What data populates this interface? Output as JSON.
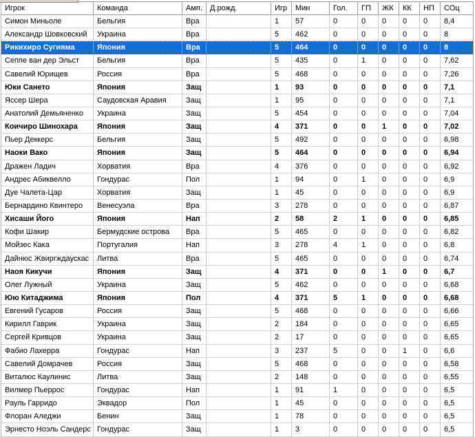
{
  "colors": {
    "selection_bg": "#0a73d2",
    "selection_text": "#ffffff",
    "focus_dash_orange": "#e88c00",
    "focus_dash_dark": "#1a1a1a",
    "grid_line": "#c9c9c9",
    "header_line": "#9a9a9a"
  },
  "table": {
    "columns": [
      {
        "key": "player",
        "label": "Игрок"
      },
      {
        "key": "team",
        "label": "Команда"
      },
      {
        "key": "position",
        "label": "Амп."
      },
      {
        "key": "dob",
        "label": "Д.рожд."
      },
      {
        "key": "games",
        "label": "Игр"
      },
      {
        "key": "minutes",
        "label": "Мин"
      },
      {
        "key": "goals",
        "label": "Гол."
      },
      {
        "key": "gp",
        "label": "ГП"
      },
      {
        "key": "yellow_cards",
        "label": "ЖК"
      },
      {
        "key": "red_cards",
        "label": "КК"
      },
      {
        "key": "np",
        "label": "НП"
      },
      {
        "key": "rating",
        "label": "СОц"
      }
    ],
    "rows": [
      {
        "player": "Симон Миньоле",
        "team": "Бельгия",
        "position": "Вра",
        "dob": "",
        "games": "1",
        "minutes": "57",
        "goals": "0",
        "gp": "0",
        "yellow_cards": "0",
        "red_cards": "0",
        "np": "0",
        "rating": "8,4",
        "bold": false,
        "selected": false
      },
      {
        "player": "Александр Шовковский",
        "team": "Украина",
        "position": "Вра",
        "dob": "",
        "games": "5",
        "minutes": "462",
        "goals": "0",
        "gp": "0",
        "yellow_cards": "0",
        "red_cards": "0",
        "np": "0",
        "rating": "8",
        "bold": false,
        "selected": false
      },
      {
        "player": "Рикихиро Сугияма",
        "team": "Япония",
        "position": "Вра",
        "dob": "",
        "games": "5",
        "minutes": "464",
        "goals": "0",
        "gp": "0",
        "yellow_cards": "0",
        "red_cards": "0",
        "np": "0",
        "rating": "8",
        "bold": true,
        "selected": true
      },
      {
        "player": "Сеппе ван дер Эльст",
        "team": "Бельгия",
        "position": "Вра",
        "dob": "",
        "games": "5",
        "minutes": "435",
        "goals": "0",
        "gp": "1",
        "yellow_cards": "0",
        "red_cards": "0",
        "np": "0",
        "rating": "7,62",
        "bold": false,
        "selected": false
      },
      {
        "player": "Савелий Юрищев",
        "team": "Россия",
        "position": "Вра",
        "dob": "",
        "games": "5",
        "minutes": "468",
        "goals": "0",
        "gp": "0",
        "yellow_cards": "0",
        "red_cards": "0",
        "np": "0",
        "rating": "7,26",
        "bold": false,
        "selected": false
      },
      {
        "player": "Юки Сането",
        "team": "Япония",
        "position": "Защ",
        "dob": "",
        "games": "1",
        "minutes": "93",
        "goals": "0",
        "gp": "0",
        "yellow_cards": "0",
        "red_cards": "0",
        "np": "0",
        "rating": "7,1",
        "bold": true,
        "selected": false
      },
      {
        "player": "Яссер Шера",
        "team": "Саудовская Аравия",
        "position": "Защ",
        "dob": "",
        "games": "1",
        "minutes": "95",
        "goals": "0",
        "gp": "0",
        "yellow_cards": "0",
        "red_cards": "0",
        "np": "0",
        "rating": "7,1",
        "bold": false,
        "selected": false
      },
      {
        "player": "Анатолий Демьяненко",
        "team": "Украина",
        "position": "Защ",
        "dob": "",
        "games": "5",
        "minutes": "454",
        "goals": "0",
        "gp": "0",
        "yellow_cards": "0",
        "red_cards": "0",
        "np": "0",
        "rating": "7,04",
        "bold": false,
        "selected": false
      },
      {
        "player": "Коичиро Шинохара",
        "team": "Япония",
        "position": "Защ",
        "dob": "",
        "games": "4",
        "minutes": "371",
        "goals": "0",
        "gp": "0",
        "yellow_cards": "1",
        "red_cards": "0",
        "np": "0",
        "rating": "7,02",
        "bold": true,
        "selected": false
      },
      {
        "player": "Пьер Деккерс",
        "team": "Бельгия",
        "position": "Защ",
        "dob": "",
        "games": "5",
        "minutes": "492",
        "goals": "0",
        "gp": "0",
        "yellow_cards": "0",
        "red_cards": "0",
        "np": "0",
        "rating": "6,98",
        "bold": false,
        "selected": false
      },
      {
        "player": "Наоки Вако",
        "team": "Япония",
        "position": "Защ",
        "dob": "",
        "games": "5",
        "minutes": "464",
        "goals": "0",
        "gp": "0",
        "yellow_cards": "0",
        "red_cards": "0",
        "np": "0",
        "rating": "6,94",
        "bold": true,
        "selected": false
      },
      {
        "player": "Дражен Ладич",
        "team": "Хорватия",
        "position": "Вра",
        "dob": "",
        "games": "4",
        "minutes": "376",
        "goals": "0",
        "gp": "0",
        "yellow_cards": "0",
        "red_cards": "0",
        "np": "0",
        "rating": "6,92",
        "bold": false,
        "selected": false
      },
      {
        "player": "Андрес Абиквелло",
        "team": "Гондурас",
        "position": "Пол",
        "dob": "",
        "games": "1",
        "minutes": "94",
        "goals": "0",
        "gp": "1",
        "yellow_cards": "0",
        "red_cards": "0",
        "np": "0",
        "rating": "6,9",
        "bold": false,
        "selected": false
      },
      {
        "player": "Дуе Чалета-Цар",
        "team": "Хорватия",
        "position": "Защ",
        "dob": "",
        "games": "1",
        "minutes": "45",
        "goals": "0",
        "gp": "0",
        "yellow_cards": "0",
        "red_cards": "0",
        "np": "0",
        "rating": "6,9",
        "bold": false,
        "selected": false
      },
      {
        "player": "Бернардино Квинтеро",
        "team": "Венесуэла",
        "position": "Вра",
        "dob": "",
        "games": "3",
        "minutes": "278",
        "goals": "0",
        "gp": "0",
        "yellow_cards": "0",
        "red_cards": "0",
        "np": "0",
        "rating": "6,87",
        "bold": false,
        "selected": false
      },
      {
        "player": "Хисаши Його",
        "team": "Япония",
        "position": "Нап",
        "dob": "",
        "games": "2",
        "minutes": "58",
        "goals": "2",
        "gp": "1",
        "yellow_cards": "0",
        "red_cards": "0",
        "np": "0",
        "rating": "6,85",
        "bold": true,
        "selected": false
      },
      {
        "player": "Кофи Шакир",
        "team": "Бермудские острова",
        "position": "Вра",
        "dob": "",
        "games": "5",
        "minutes": "465",
        "goals": "0",
        "gp": "0",
        "yellow_cards": "0",
        "red_cards": "0",
        "np": "0",
        "rating": "6,82",
        "bold": false,
        "selected": false
      },
      {
        "player": "Мойзес Кака",
        "team": "Португалия",
        "position": "Нап",
        "dob": "",
        "games": "3",
        "minutes": "278",
        "goals": "4",
        "gp": "1",
        "yellow_cards": "0",
        "red_cards": "0",
        "np": "0",
        "rating": "6,8",
        "bold": false,
        "selected": false
      },
      {
        "player": "Дайнюс Жвиргждаускас",
        "team": "Литва",
        "position": "Вра",
        "dob": "",
        "games": "5",
        "minutes": "465",
        "goals": "0",
        "gp": "0",
        "yellow_cards": "0",
        "red_cards": "0",
        "np": "0",
        "rating": "6,74",
        "bold": false,
        "selected": false
      },
      {
        "player": "Наоя Кикучи",
        "team": "Япония",
        "position": "Защ",
        "dob": "",
        "games": "4",
        "minutes": "371",
        "goals": "0",
        "gp": "0",
        "yellow_cards": "1",
        "red_cards": "0",
        "np": "0",
        "rating": "6,7",
        "bold": true,
        "selected": false
      },
      {
        "player": "Олег Лужный",
        "team": "Украина",
        "position": "Защ",
        "dob": "",
        "games": "5",
        "minutes": "462",
        "goals": "0",
        "gp": "0",
        "yellow_cards": "0",
        "red_cards": "0",
        "np": "0",
        "rating": "6,68",
        "bold": false,
        "selected": false
      },
      {
        "player": "Юю Китаджима",
        "team": "Япония",
        "position": "Пол",
        "dob": "",
        "games": "4",
        "minutes": "371",
        "goals": "5",
        "gp": "1",
        "yellow_cards": "0",
        "red_cards": "0",
        "np": "0",
        "rating": "6,68",
        "bold": true,
        "selected": false
      },
      {
        "player": "Евгений Гусаров",
        "team": "Россия",
        "position": "Защ",
        "dob": "",
        "games": "5",
        "minutes": "468",
        "goals": "0",
        "gp": "0",
        "yellow_cards": "0",
        "red_cards": "0",
        "np": "0",
        "rating": "6,66",
        "bold": false,
        "selected": false
      },
      {
        "player": "Кирилл Гаврик",
        "team": "Украина",
        "position": "Защ",
        "dob": "",
        "games": "2",
        "minutes": "184",
        "goals": "0",
        "gp": "0",
        "yellow_cards": "0",
        "red_cards": "0",
        "np": "0",
        "rating": "6,65",
        "bold": false,
        "selected": false
      },
      {
        "player": "Сергей Кривцов",
        "team": "Украина",
        "position": "Защ",
        "dob": "",
        "games": "2",
        "minutes": "17",
        "goals": "0",
        "gp": "0",
        "yellow_cards": "0",
        "red_cards": "0",
        "np": "0",
        "rating": "6,65",
        "bold": false,
        "selected": false
      },
      {
        "player": "Фабио Лахерра",
        "team": "Гондурас",
        "position": "Нап",
        "dob": "",
        "games": "3",
        "minutes": "237",
        "goals": "5",
        "gp": "0",
        "yellow_cards": "0",
        "red_cards": "1",
        "np": "0",
        "rating": "6,6",
        "bold": false,
        "selected": false
      },
      {
        "player": "Савелий Домрачев",
        "team": "Россия",
        "position": "Защ",
        "dob": "",
        "games": "5",
        "minutes": "468",
        "goals": "0",
        "gp": "0",
        "yellow_cards": "0",
        "red_cards": "0",
        "np": "0",
        "rating": "6,58",
        "bold": false,
        "selected": false
      },
      {
        "player": "Виталюс Каулинис",
        "team": "Литва",
        "position": "Защ",
        "dob": "",
        "games": "2",
        "minutes": "148",
        "goals": "0",
        "gp": "0",
        "yellow_cards": "0",
        "red_cards": "0",
        "np": "0",
        "rating": "6,55",
        "bold": false,
        "selected": false
      },
      {
        "player": "Вилмер Пьеррос",
        "team": "Гондурас",
        "position": "Нап",
        "dob": "",
        "games": "1",
        "minutes": "91",
        "goals": "1",
        "gp": "0",
        "yellow_cards": "0",
        "red_cards": "0",
        "np": "0",
        "rating": "6,5",
        "bold": false,
        "selected": false
      },
      {
        "player": "Рауль Гарридо",
        "team": "Эквадор",
        "position": "Пол",
        "dob": "",
        "games": "1",
        "minutes": "45",
        "goals": "0",
        "gp": "0",
        "yellow_cards": "0",
        "red_cards": "0",
        "np": "0",
        "rating": "6,5",
        "bold": false,
        "selected": false
      },
      {
        "player": "Флоран Аледжи",
        "team": "Бенин",
        "position": "Защ",
        "dob": "",
        "games": "1",
        "minutes": "78",
        "goals": "0",
        "gp": "0",
        "yellow_cards": "0",
        "red_cards": "0",
        "np": "0",
        "rating": "6,5",
        "bold": false,
        "selected": false
      },
      {
        "player": "Эрнесто Ноэль Сандерс",
        "team": "Гондурас",
        "position": "Защ",
        "dob": "",
        "games": "1",
        "minutes": "3",
        "goals": "0",
        "gp": "0",
        "yellow_cards": "0",
        "red_cards": "0",
        "np": "0",
        "rating": "6,5",
        "bold": false,
        "selected": false
      }
    ]
  }
}
